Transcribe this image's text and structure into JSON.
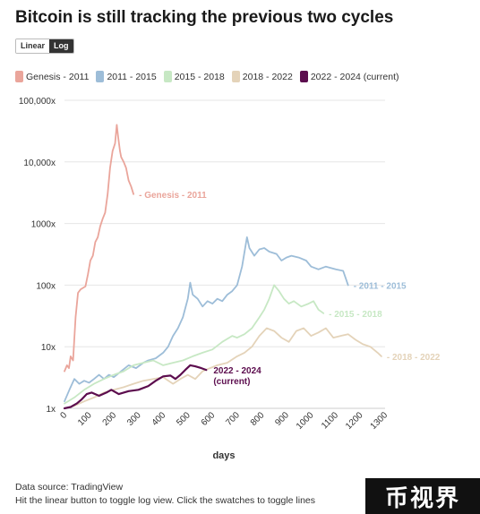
{
  "title": "Bitcoin is still tracking the previous two cycles",
  "toggle": {
    "linear_label": "Linear",
    "log_label": "Log",
    "active": "log"
  },
  "footer": {
    "source": "Data source: TradingView",
    "hint": "Hit the linear button to toggle log view. Click the swatches to toggle lines"
  },
  "logo": {
    "text": "币视界"
  },
  "chart_data": {
    "type": "line",
    "title": "Bitcoin is still tracking the previous two cycles",
    "xlabel": "days",
    "ylabel": "",
    "xlim": [
      0,
      1300
    ],
    "ylim": [
      1,
      100000
    ],
    "yscale": "log",
    "grid": true,
    "legend_position": "top-left",
    "x_ticks": [
      0,
      100,
      200,
      300,
      400,
      500,
      600,
      700,
      800,
      900,
      1000,
      1100,
      1200,
      1300
    ],
    "y_ticks": [
      1,
      10,
      100,
      1000,
      10000,
      100000
    ],
    "y_tick_labels": [
      "1x",
      "10x",
      "100x",
      "1000x",
      "10,000x",
      "100,000x"
    ],
    "series": [
      {
        "name": "Genesis - 2011",
        "end_label": "- Genesis - 2011",
        "color": "#eaa59b",
        "points": [
          [
            0,
            4
          ],
          [
            10,
            5
          ],
          [
            18,
            4.5
          ],
          [
            25,
            7
          ],
          [
            35,
            6
          ],
          [
            45,
            30
          ],
          [
            55,
            75
          ],
          [
            65,
            85
          ],
          [
            75,
            90
          ],
          [
            85,
            95
          ],
          [
            95,
            150
          ],
          [
            105,
            250
          ],
          [
            115,
            300
          ],
          [
            125,
            500
          ],
          [
            135,
            600
          ],
          [
            145,
            900
          ],
          [
            155,
            1200
          ],
          [
            165,
            1500
          ],
          [
            175,
            3000
          ],
          [
            185,
            8000
          ],
          [
            195,
            15000
          ],
          [
            205,
            20000
          ],
          [
            212,
            40000
          ],
          [
            218,
            25000
          ],
          [
            225,
            15000
          ],
          [
            230,
            12000
          ],
          [
            240,
            10000
          ],
          [
            250,
            8000
          ],
          [
            260,
            5000
          ],
          [
            270,
            4000
          ],
          [
            280,
            3000
          ]
        ]
      },
      {
        "name": "2011 - 2015",
        "end_label": "- 2011 - 2015",
        "color": "#9dbdd8",
        "points": [
          [
            0,
            1.3
          ],
          [
            20,
            2
          ],
          [
            40,
            3
          ],
          [
            60,
            2.5
          ],
          [
            80,
            2.8
          ],
          [
            100,
            2.6
          ],
          [
            120,
            3
          ],
          [
            140,
            3.5
          ],
          [
            160,
            3
          ],
          [
            180,
            3.5
          ],
          [
            200,
            3.2
          ],
          [
            230,
            4
          ],
          [
            260,
            5
          ],
          [
            290,
            4.5
          ],
          [
            320,
            5.5
          ],
          [
            340,
            6
          ],
          [
            370,
            6.5
          ],
          [
            400,
            8
          ],
          [
            420,
            10
          ],
          [
            440,
            15
          ],
          [
            460,
            20
          ],
          [
            480,
            30
          ],
          [
            500,
            60
          ],
          [
            510,
            110
          ],
          [
            520,
            70
          ],
          [
            540,
            60
          ],
          [
            560,
            45
          ],
          [
            580,
            55
          ],
          [
            600,
            50
          ],
          [
            620,
            60
          ],
          [
            640,
            55
          ],
          [
            660,
            70
          ],
          [
            680,
            80
          ],
          [
            700,
            100
          ],
          [
            720,
            200
          ],
          [
            740,
            600
          ],
          [
            750,
            400
          ],
          [
            770,
            300
          ],
          [
            790,
            380
          ],
          [
            810,
            400
          ],
          [
            830,
            350
          ],
          [
            860,
            320
          ],
          [
            880,
            250
          ],
          [
            900,
            280
          ],
          [
            920,
            300
          ],
          [
            950,
            280
          ],
          [
            980,
            250
          ],
          [
            1000,
            200
          ],
          [
            1030,
            180
          ],
          [
            1060,
            200
          ],
          [
            1100,
            180
          ],
          [
            1130,
            170
          ],
          [
            1150,
            100
          ]
        ]
      },
      {
        "name": "2015 - 2018",
        "end_label": "- 2015 - 2018",
        "color": "#c7e8c4",
        "points": [
          [
            0,
            1.2
          ],
          [
            40,
            1.5
          ],
          [
            80,
            2
          ],
          [
            120,
            2.5
          ],
          [
            160,
            3
          ],
          [
            200,
            3.5
          ],
          [
            240,
            4
          ],
          [
            280,
            5
          ],
          [
            320,
            5.5
          ],
          [
            360,
            6
          ],
          [
            400,
            5
          ],
          [
            440,
            5.5
          ],
          [
            480,
            6
          ],
          [
            520,
            7
          ],
          [
            560,
            8
          ],
          [
            600,
            9
          ],
          [
            640,
            12
          ],
          [
            680,
            15
          ],
          [
            700,
            14
          ],
          [
            730,
            16
          ],
          [
            760,
            20
          ],
          [
            790,
            30
          ],
          [
            810,
            40
          ],
          [
            830,
            60
          ],
          [
            850,
            100
          ],
          [
            870,
            80
          ],
          [
            890,
            60
          ],
          [
            910,
            50
          ],
          [
            930,
            55
          ],
          [
            960,
            45
          ],
          [
            990,
            50
          ],
          [
            1010,
            55
          ],
          [
            1030,
            40
          ],
          [
            1050,
            35
          ]
        ]
      },
      {
        "name": "2018 - 2022",
        "end_label": "- 2018 - 2022",
        "color": "#e4d3b9",
        "points": [
          [
            0,
            1
          ],
          [
            40,
            1.1
          ],
          [
            80,
            1.3
          ],
          [
            120,
            1.5
          ],
          [
            160,
            1.8
          ],
          [
            200,
            2
          ],
          [
            240,
            2.2
          ],
          [
            280,
            2.5
          ],
          [
            320,
            2.8
          ],
          [
            360,
            3
          ],
          [
            400,
            3.2
          ],
          [
            440,
            2.5
          ],
          [
            470,
            3
          ],
          [
            500,
            3.5
          ],
          [
            530,
            3
          ],
          [
            560,
            4
          ],
          [
            590,
            4.5
          ],
          [
            620,
            5
          ],
          [
            660,
            5.5
          ],
          [
            700,
            7
          ],
          [
            730,
            8
          ],
          [
            760,
            10
          ],
          [
            790,
            15
          ],
          [
            820,
            20
          ],
          [
            850,
            18
          ],
          [
            880,
            14
          ],
          [
            910,
            12
          ],
          [
            940,
            18
          ],
          [
            970,
            20
          ],
          [
            1000,
            15
          ],
          [
            1030,
            17
          ],
          [
            1060,
            20
          ],
          [
            1090,
            14
          ],
          [
            1120,
            15
          ],
          [
            1150,
            16
          ],
          [
            1180,
            13
          ],
          [
            1210,
            11
          ],
          [
            1240,
            10
          ],
          [
            1270,
            8
          ],
          [
            1285,
            7
          ]
        ]
      },
      {
        "name": "2022 - 2024 (current)",
        "end_label_lines": [
          "2022 - 2024",
          "(current)"
        ],
        "color": "#5c0d4e",
        "points": [
          [
            0,
            1
          ],
          [
            25,
            1.05
          ],
          [
            50,
            1.2
          ],
          [
            70,
            1.4
          ],
          [
            90,
            1.7
          ],
          [
            110,
            1.8
          ],
          [
            140,
            1.6
          ],
          [
            170,
            1.8
          ],
          [
            190,
            2
          ],
          [
            220,
            1.7
          ],
          [
            260,
            1.9
          ],
          [
            300,
            2
          ],
          [
            340,
            2.3
          ],
          [
            370,
            2.8
          ],
          [
            400,
            3.3
          ],
          [
            430,
            3.4
          ],
          [
            450,
            3
          ],
          [
            470,
            3.5
          ],
          [
            490,
            4.2
          ],
          [
            510,
            5
          ],
          [
            530,
            4.8
          ],
          [
            555,
            4.5
          ],
          [
            575,
            4.2
          ]
        ]
      }
    ]
  }
}
